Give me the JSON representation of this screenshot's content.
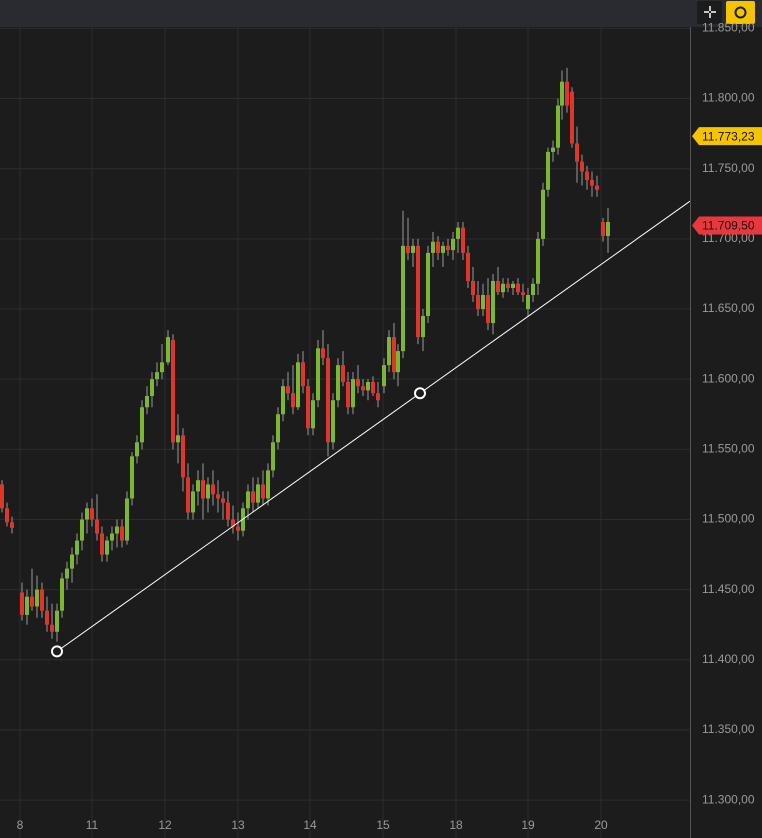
{
  "chart_data": {
    "type": "candlestick",
    "up_color": "#7cb82f",
    "down_color": "#e0352b",
    "xlim": [
      -4,
      134
    ],
    "ylim": [
      11273,
      11851
    ],
    "xticks": [
      {
        "value": 0,
        "label": "8"
      },
      {
        "value": 14.4,
        "label": "11"
      },
      {
        "value": 29,
        "label": "12"
      },
      {
        "value": 43.6,
        "label": "13"
      },
      {
        "value": 58,
        "label": "14"
      },
      {
        "value": 72.6,
        "label": "15"
      },
      {
        "value": 87.2,
        "label": "18"
      },
      {
        "value": 101.6,
        "label": "19"
      },
      {
        "value": 116.2,
        "label": "20"
      }
    ],
    "yticks": [
      {
        "value": 11850,
        "label": "11.850,00"
      },
      {
        "value": 11800,
        "label": "11.800,00"
      },
      {
        "value": 11750,
        "label": "11.750,00"
      },
      {
        "value": 11700,
        "label": "11.700,00"
      },
      {
        "value": 11650,
        "label": "11.650,00"
      },
      {
        "value": 11600,
        "label": "11.600,00"
      },
      {
        "value": 11550,
        "label": "11.550,00"
      },
      {
        "value": 11500,
        "label": "11.500,00"
      },
      {
        "value": 11450,
        "label": "11.450,00"
      },
      {
        "value": 11400,
        "label": "11.400,00"
      },
      {
        "value": 11350,
        "label": "11.350,00"
      },
      {
        "value": 11300,
        "label": "11.300,00"
      }
    ],
    "grid": true,
    "candles": {
      "x": [
        -3.6,
        -2.6,
        -1.6,
        0.4,
        1.4,
        2.4,
        3.4,
        4.4,
        5.4,
        6.4,
        7.4,
        8.4,
        9.4,
        10.4,
        11.4,
        12.4,
        13.4,
        14.4,
        15.4,
        16.4,
        17.4,
        18.4,
        19.4,
        20.4,
        21.4,
        22.4,
        23.4,
        24.4,
        25.4,
        26.4,
        27.4,
        28.4,
        29.6,
        30.6,
        31.6,
        32.6,
        33.6,
        34.6,
        35.6,
        36.6,
        37.6,
        38.6,
        39.6,
        40.6,
        41.6,
        42.6,
        43.6,
        44.6,
        45.6,
        46.6,
        47.6,
        48.6,
        49.6,
        50.6,
        51.6,
        52.6,
        53.6,
        54.6,
        55.6,
        56.6,
        57.6,
        58.6,
        59.6,
        60.6,
        61.6,
        62.6,
        63.6,
        64.6,
        65.6,
        66.6,
        67.6,
        68.6,
        69.6,
        70.6,
        71.6,
        72.8,
        73.8,
        74.8,
        75.6,
        76.6,
        77.6,
        78.6,
        79.6,
        80.6,
        81.6,
        82.6,
        83.6,
        84.6,
        85.6,
        86.6,
        87.6,
        88.6,
        89.6,
        90.6,
        91.6,
        92.6,
        93.6,
        94.6,
        95.6,
        96.6,
        97.6,
        98.6,
        99.6,
        100.6,
        101.6,
        102.6,
        103.6,
        104.6,
        105.6,
        106.6,
        107.6,
        108.4,
        109.4,
        110.4,
        111.4,
        112.4,
        113.4,
        114.4,
        115.4,
        116.6,
        117.6
      ],
      "open": [
        11525,
        11508,
        11498,
        11448,
        11432,
        11445,
        11438,
        11450,
        11435,
        11425,
        11420,
        11435,
        11458,
        11465,
        11475,
        11485,
        11500,
        11508,
        11500,
        11490,
        11475,
        11485,
        11490,
        11495,
        11485,
        11515,
        11545,
        11555,
        11580,
        11588,
        11600,
        11605,
        11612,
        11628,
        11555,
        11560,
        11530,
        11505,
        11520,
        11528,
        11515,
        11525,
        11518,
        11515,
        11512,
        11500,
        11495,
        11492,
        11508,
        11520,
        11512,
        11525,
        11515,
        11535,
        11555,
        11575,
        11595,
        11590,
        11580,
        11612,
        11595,
        11565,
        11585,
        11622,
        11615,
        11555,
        11585,
        11610,
        11598,
        11580,
        11600,
        11595,
        11592,
        11598,
        11590,
        11595,
        11610,
        11630,
        11605,
        11620,
        11695,
        11690,
        11695,
        11630,
        11645,
        11690,
        11698,
        11690,
        11695,
        11692,
        11700,
        11708,
        11690,
        11670,
        11660,
        11650,
        11660,
        11640,
        11670,
        11662,
        11668,
        11665,
        11668,
        11662,
        11650,
        11660,
        11668,
        11700,
        11735,
        11762,
        11765,
        11795,
        11812,
        11805,
        11768,
        11755,
        11748,
        11742,
        11738,
        11712,
        11702
      ],
      "high": [
        11528,
        11512,
        11502,
        11455,
        11450,
        11465,
        11460,
        11455,
        11445,
        11440,
        11440,
        11462,
        11470,
        11480,
        11490,
        11505,
        11512,
        11515,
        11518,
        11495,
        11488,
        11495,
        11500,
        11500,
        11520,
        11548,
        11560,
        11585,
        11595,
        11605,
        11612,
        11625,
        11635,
        11632,
        11575,
        11565,
        11540,
        11525,
        11535,
        11540,
        11530,
        11535,
        11528,
        11520,
        11520,
        11510,
        11505,
        11512,
        11525,
        11530,
        11530,
        11535,
        11540,
        11560,
        11580,
        11600,
        11605,
        11610,
        11618,
        11620,
        11600,
        11590,
        11628,
        11635,
        11625,
        11590,
        11615,
        11620,
        11605,
        11605,
        11610,
        11600,
        11600,
        11602,
        11598,
        11615,
        11635,
        11640,
        11625,
        11720,
        11715,
        11700,
        11700,
        11650,
        11695,
        11705,
        11702,
        11698,
        11700,
        11705,
        11712,
        11712,
        11695,
        11680,
        11670,
        11668,
        11672,
        11675,
        11680,
        11672,
        11672,
        11670,
        11672,
        11668,
        11665,
        11672,
        11705,
        11740,
        11765,
        11770,
        11800,
        11820,
        11822,
        11808,
        11780,
        11760,
        11752,
        11748,
        11745,
        11715,
        11722
      ],
      "low": [
        11505,
        11495,
        11490,
        11428,
        11425,
        11435,
        11430,
        11430,
        11420,
        11415,
        11413,
        11430,
        11450,
        11455,
        11468,
        11478,
        11490,
        11495,
        11485,
        11470,
        11470,
        11478,
        11480,
        11480,
        11482,
        11510,
        11540,
        11550,
        11575,
        11580,
        11595,
        11600,
        11610,
        11550,
        11540,
        11520,
        11500,
        11500,
        11510,
        11500,
        11505,
        11510,
        11505,
        11500,
        11495,
        11490,
        11485,
        11488,
        11500,
        11505,
        11508,
        11510,
        11510,
        11530,
        11550,
        11570,
        11585,
        11575,
        11578,
        11590,
        11560,
        11560,
        11580,
        11610,
        11545,
        11550,
        11580,
        11595,
        11575,
        11575,
        11590,
        11588,
        11585,
        11588,
        11580,
        11590,
        11605,
        11600,
        11595,
        11615,
        11685,
        11680,
        11625,
        11620,
        11640,
        11680,
        11685,
        11680,
        11688,
        11685,
        11690,
        11685,
        11665,
        11655,
        11645,
        11645,
        11635,
        11632,
        11660,
        11658,
        11662,
        11660,
        11660,
        11655,
        11645,
        11655,
        11660,
        11695,
        11730,
        11755,
        11760,
        11785,
        11790,
        11765,
        11740,
        11738,
        11735,
        11730,
        11730,
        11698,
        11690
      ],
      "close": [
        11508,
        11498,
        11494,
        11432,
        11445,
        11438,
        11450,
        11435,
        11425,
        11420,
        11435,
        11458,
        11465,
        11475,
        11485,
        11500,
        11508,
        11500,
        11490,
        11475,
        11485,
        11490,
        11495,
        11485,
        11515,
        11545,
        11555,
        11580,
        11588,
        11600,
        11605,
        11612,
        11630,
        11555,
        11560,
        11530,
        11505,
        11520,
        11528,
        11515,
        11525,
        11518,
        11515,
        11512,
        11500,
        11495,
        11492,
        11508,
        11520,
        11512,
        11525,
        11515,
        11535,
        11555,
        11575,
        11595,
        11590,
        11580,
        11612,
        11595,
        11565,
        11585,
        11622,
        11615,
        11555,
        11585,
        11610,
        11598,
        11580,
        11600,
        11595,
        11592,
        11598,
        11590,
        11585,
        11610,
        11630,
        11605,
        11620,
        11695,
        11690,
        11695,
        11630,
        11645,
        11690,
        11698,
        11690,
        11695,
        11692,
        11700,
        11708,
        11690,
        11670,
        11660,
        11650,
        11660,
        11640,
        11670,
        11662,
        11668,
        11665,
        11668,
        11662,
        11660,
        11660,
        11668,
        11700,
        11735,
        11762,
        11765,
        11795,
        11812,
        11795,
        11768,
        11755,
        11748,
        11742,
        11738,
        11735,
        11702,
        11712
      ]
    },
    "trendline": {
      "color": "#ffffff",
      "points": [
        {
          "x": 7.4,
          "y": 11406
        },
        {
          "x": 80,
          "y": 11590
        }
      ]
    },
    "price_tags": [
      {
        "value": 11773.23,
        "label": "11.773,23",
        "color": "#f5c400"
      },
      {
        "value": 11709.5,
        "label": "11.709,50",
        "color": "#e8383d"
      }
    ]
  }
}
